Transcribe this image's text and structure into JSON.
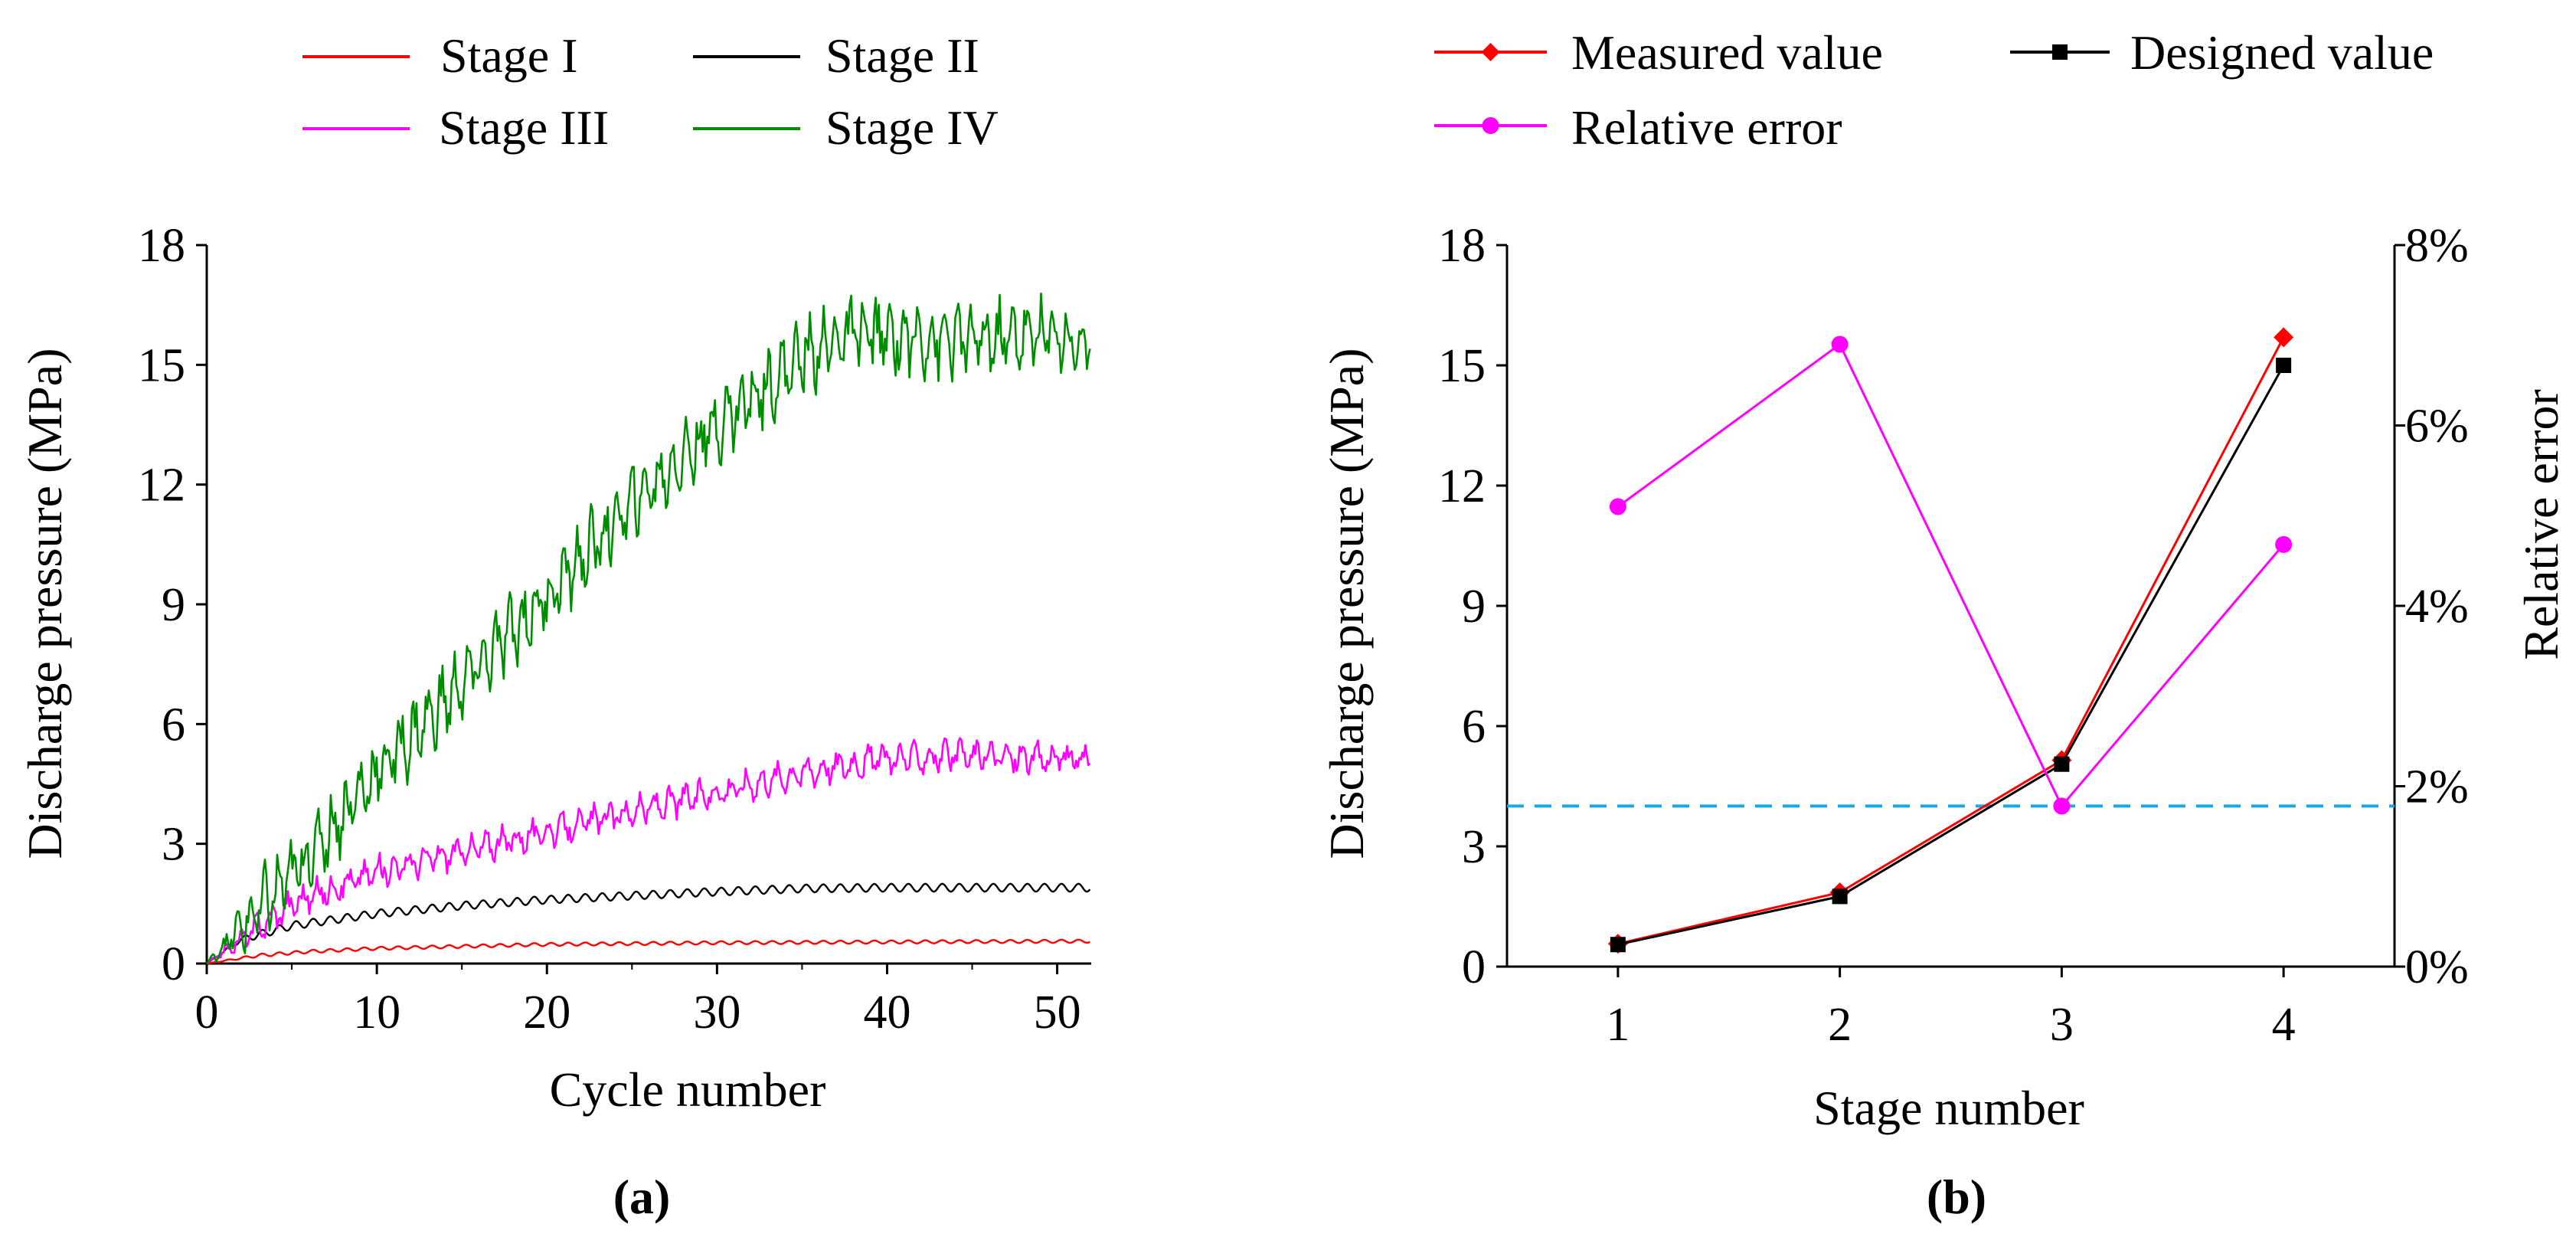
{
  "chart_data": [
    {
      "type": "line",
      "panel_label": "(a)",
      "xlabel": "Cycle number",
      "ylabel": "Discharge pressure (MPa)",
      "xlim": [
        0,
        52
      ],
      "ylim": [
        0,
        18
      ],
      "xticks": [
        0,
        10,
        20,
        30,
        40,
        50
      ],
      "yticks": [
        0,
        3,
        6,
        9,
        12,
        15,
        18
      ],
      "legend": {
        "placement": "top",
        "columns": 2
      },
      "series": [
        {
          "name": "Stage I",
          "color": "#ff0000",
          "points": [
            [
              0,
              0
            ],
            [
              3,
              0.2
            ],
            [
              6,
              0.3
            ],
            [
              10,
              0.38
            ],
            [
              15,
              0.43
            ],
            [
              20,
              0.48
            ],
            [
              25,
              0.5
            ],
            [
              30,
              0.52
            ],
            [
              35,
              0.53
            ],
            [
              40,
              0.54
            ],
            [
              45,
              0.55
            ],
            [
              52,
              0.56
            ]
          ],
          "ripple": 0.04,
          "period": 1.0
        },
        {
          "name": "Stage II",
          "color": "#000000",
          "points": [
            [
              0,
              0
            ],
            [
              2,
              0.6
            ],
            [
              5,
              0.95
            ],
            [
              10,
              1.25
            ],
            [
              15,
              1.45
            ],
            [
              20,
              1.6
            ],
            [
              25,
              1.7
            ],
            [
              30,
              1.8
            ],
            [
              35,
              1.88
            ],
            [
              40,
              1.9
            ],
            [
              45,
              1.9
            ],
            [
              52,
              1.9
            ]
          ],
          "ripple": 0.1,
          "period": 1.0
        },
        {
          "name": "Stage III",
          "color": "#ff00ff",
          "points": [
            [
              0,
              0
            ],
            [
              5,
              1.5
            ],
            [
              10,
              2.3
            ],
            [
              15,
              2.8
            ],
            [
              20,
              3.3
            ],
            [
              25,
              3.8
            ],
            [
              30,
              4.3
            ],
            [
              35,
              4.8
            ],
            [
              40,
              5.15
            ],
            [
              45,
              5.2
            ],
            [
              52,
              5.1
            ]
          ],
          "ripple": 0.25,
          "period": 0.9
        },
        {
          "name": "Stage IV",
          "color": "#008c00",
          "points": [
            [
              0,
              0
            ],
            [
              5,
              2.2
            ],
            [
              10,
              4.8
            ],
            [
              15,
              7
            ],
            [
              20,
              9.2
            ],
            [
              25,
              11.5
            ],
            [
              30,
              13.5
            ],
            [
              35,
              15.2
            ],
            [
              38,
              15.8
            ],
            [
              40,
              15.7
            ],
            [
              45,
              15.6
            ],
            [
              50,
              15.8
            ],
            [
              52,
              15.3
            ]
          ],
          "ripple": 0.6,
          "period": 0.8
        }
      ]
    },
    {
      "type": "line",
      "panel_label": "(b)",
      "xlabel": "Stage number",
      "ylabel": "Discharge pressure (MPa)",
      "y2label": "Relative error",
      "categories": [
        1,
        2,
        3,
        4
      ],
      "xlim": [
        0.5,
        4.5
      ],
      "ylim": [
        0,
        18
      ],
      "y2lim": [
        0,
        8
      ],
      "yticks": [
        0,
        3,
        6,
        9,
        12,
        15,
        18
      ],
      "y2ticks": [
        "0%",
        "2%",
        "4%",
        "6%",
        "8%"
      ],
      "reference_line": {
        "y2": 1.78,
        "color": "#1aa7e6",
        "style": "dashed"
      },
      "legend": {
        "placement": "top",
        "columns": 2
      },
      "series": [
        {
          "name": "Measured value",
          "axis": "left",
          "color": "#ff0000",
          "marker": "diamond",
          "values": [
            0.57,
            1.85,
            5.15,
            15.7
          ]
        },
        {
          "name": "Designed value",
          "axis": "left",
          "color": "#000000",
          "marker": "square",
          "values": [
            0.55,
            1.75,
            5.05,
            15.0
          ]
        },
        {
          "name": "Relative error",
          "axis": "right",
          "color": "#ff00ff",
          "marker": "circle",
          "values": [
            5.1,
            6.9,
            1.78,
            4.68
          ]
        }
      ]
    }
  ]
}
